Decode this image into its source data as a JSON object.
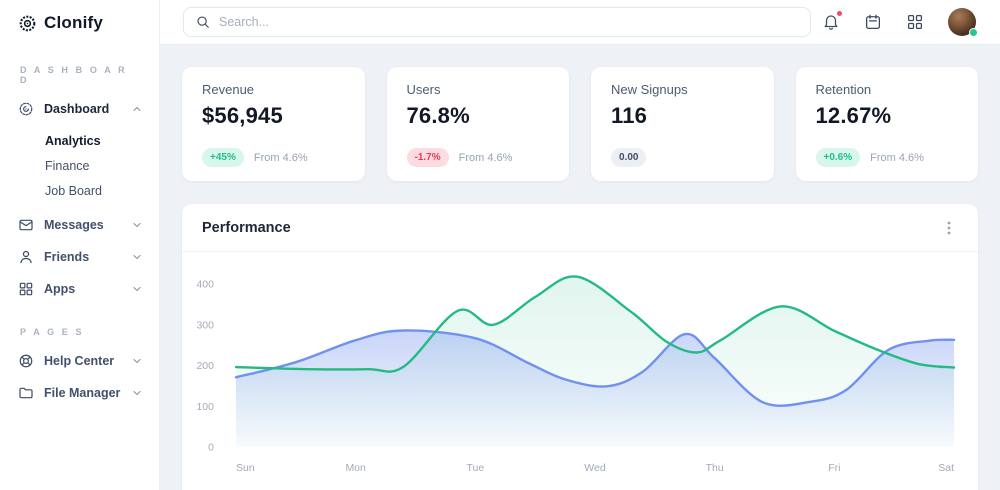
{
  "sidebar": {
    "logo_text": "Clonify",
    "sections": [
      {
        "label": "DASHBOARD",
        "items": [
          {
            "label": "Dashboard",
            "icon": "dashboard-icon",
            "expanded": true,
            "bold": true,
            "children": [
              {
                "label": "Analytics",
                "active": true
              },
              {
                "label": "Finance",
                "active": false
              },
              {
                "label": "Job Board",
                "active": false
              }
            ]
          },
          {
            "label": "Messages",
            "icon": "messages-icon",
            "expanded": false,
            "children": []
          },
          {
            "label": "Friends",
            "icon": "friends-icon",
            "expanded": false,
            "children": []
          },
          {
            "label": "Apps",
            "icon": "apps-icon",
            "expanded": false,
            "children": []
          }
        ]
      },
      {
        "label": "PAGES",
        "items": [
          {
            "label": "Help Center",
            "icon": "help-icon",
            "expanded": false,
            "children": []
          },
          {
            "label": "File Manager",
            "icon": "folder-icon",
            "expanded": false,
            "children": []
          }
        ]
      }
    ]
  },
  "topbar": {
    "search_placeholder": "Search...",
    "icons": [
      "bell-icon",
      "calendar-icon",
      "apps-grid-icon"
    ],
    "bell_has_notification": true,
    "avatar_online": true
  },
  "stats": [
    {
      "title": "Revenue",
      "value": "$56,945",
      "badge": "+45%",
      "badge_type": "positive",
      "note": "From 4.6%"
    },
    {
      "title": "Users",
      "value": "76.8%",
      "badge": "-1.7%",
      "badge_type": "negative",
      "note": "From 4.6%"
    },
    {
      "title": "New Signups",
      "value": "116",
      "badge": "0.00",
      "badge_type": "neutral",
      "note": ""
    },
    {
      "title": "Retention",
      "value": "12.67%",
      "badge": "+0.6%",
      "badge_type": "positive",
      "note": "From 4.6%"
    }
  ],
  "performance": {
    "title": "Performance"
  },
  "chart_data": {
    "type": "area",
    "title": "Performance",
    "x_labels": [
      "Sun",
      "Mon",
      "Tue",
      "Wed",
      "Thu",
      "Fri",
      "Sat"
    ],
    "x_unit": "day-index (0 = Sun)",
    "y_ticks": [
      0,
      100,
      200,
      300,
      400
    ],
    "ylim": [
      0,
      440
    ],
    "grid": false,
    "legend": false,
    "series": [
      {
        "name": "series-green",
        "color": "#25b984",
        "fill_from": "rgba(37,185,132,0.14)",
        "fill_to": "rgba(37,185,132,0.01)",
        "points": [
          [
            0,
            196
          ],
          [
            0.6,
            191
          ],
          [
            1.1,
            191
          ],
          [
            1.4,
            197
          ],
          [
            1.85,
            334
          ],
          [
            2.15,
            300
          ],
          [
            2.5,
            368
          ],
          [
            2.85,
            418
          ],
          [
            3.3,
            332
          ],
          [
            3.6,
            258
          ],
          [
            3.85,
            232
          ],
          [
            4.05,
            262
          ],
          [
            4.55,
            345
          ],
          [
            5.0,
            285
          ],
          [
            5.35,
            240
          ],
          [
            5.7,
            204
          ],
          [
            6,
            195
          ]
        ]
      },
      {
        "name": "series-blue",
        "color": "#7191f0",
        "fill_from": "rgba(113,145,240,0.38)",
        "fill_to": "rgba(113,145,240,0.03)",
        "points": [
          [
            0,
            171
          ],
          [
            0.5,
            208
          ],
          [
            1.0,
            262
          ],
          [
            1.4,
            286
          ],
          [
            2.0,
            267
          ],
          [
            2.45,
            205
          ],
          [
            2.75,
            166
          ],
          [
            3.1,
            149
          ],
          [
            3.4,
            185
          ],
          [
            3.75,
            277
          ],
          [
            4.0,
            218
          ],
          [
            4.4,
            110
          ],
          [
            4.8,
            111
          ],
          [
            5.1,
            140
          ],
          [
            5.45,
            238
          ],
          [
            5.8,
            261
          ],
          [
            6,
            263
          ]
        ]
      }
    ]
  },
  "colors": {
    "background": "#eef1f6",
    "card": "#ffffff",
    "accent_green": "#25b984",
    "accent_blue": "#7191f0",
    "alert_red": "#f4486b",
    "online_green": "#22c88f",
    "muted_text": "#9aa3b2"
  }
}
